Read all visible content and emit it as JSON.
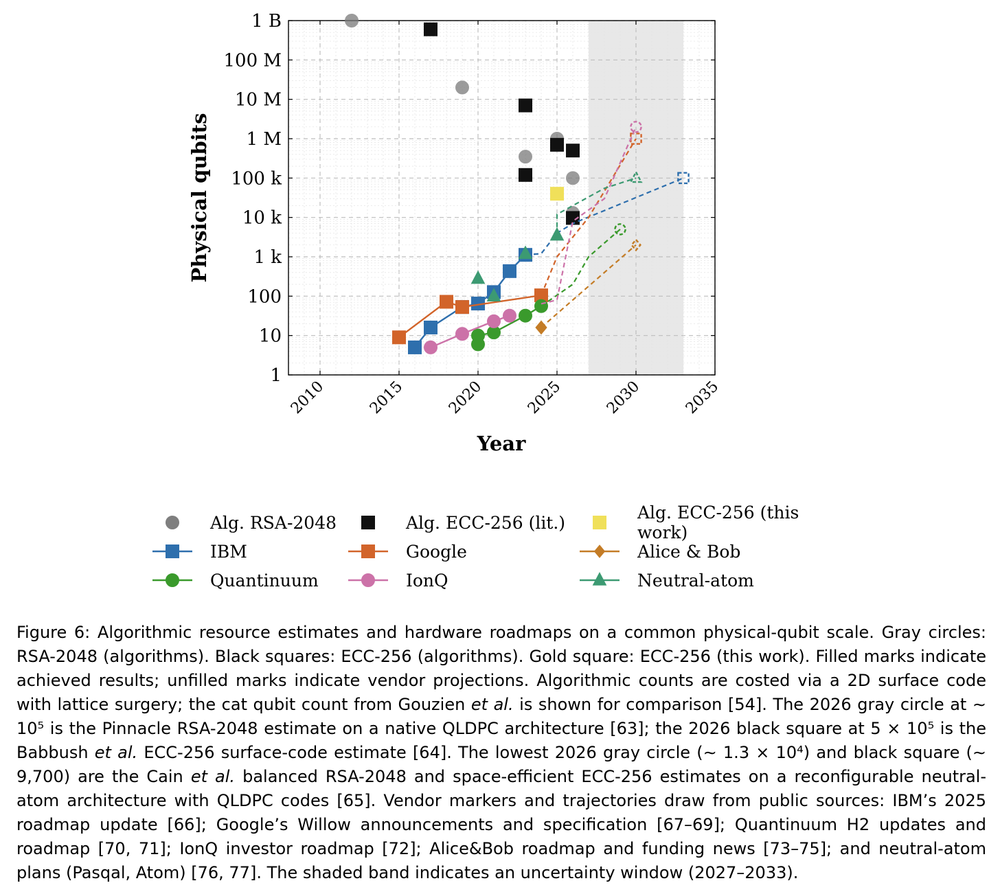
{
  "chart_data": {
    "type": "scatter",
    "xlabel": "Year",
    "ylabel": "Physical qubits",
    "xlim": [
      2008,
      2035
    ],
    "ylim": [
      1,
      1000000000
    ],
    "yscale": "log",
    "xticks": [
      "2010",
      "2015",
      "2020",
      "2025",
      "2030",
      "2035"
    ],
    "yticks": [
      "1",
      "10",
      "100",
      "1 k",
      "10 k",
      "100 k",
      "1 M",
      "10 M",
      "100 M",
      "1 B"
    ],
    "grid": true,
    "shaded_band": {
      "x": [
        2027,
        2033
      ],
      "color": "#e8e8e8"
    },
    "legend_position": "bottom",
    "series": [
      {
        "name": "Alg. RSA-2048",
        "marker": "circle",
        "color": "#7a7a7a",
        "line": false,
        "points": [
          [
            2012,
            1000000000
          ],
          [
            2019,
            20000000
          ],
          [
            2023,
            350000
          ],
          [
            2025,
            1000000
          ],
          [
            2026,
            100000
          ],
          [
            2026,
            13000
          ]
        ]
      },
      {
        "name": "Alg. ECC-256 (lit.)",
        "marker": "square",
        "color": "#111111",
        "line": false,
        "points": [
          [
            2017,
            600000000
          ],
          [
            2023,
            7000000
          ],
          [
            2023,
            120000
          ],
          [
            2025,
            700000
          ],
          [
            2026,
            500000
          ],
          [
            2026,
            9700
          ]
        ]
      },
      {
        "name": "Alg. ECC-256 (this work)",
        "marker": "square",
        "color": "#f0e05a",
        "line": false,
        "points": [
          [
            2025,
            40000
          ]
        ]
      },
      {
        "name": "IBM",
        "marker": "square",
        "color": "#2e6fad",
        "line": true,
        "points": [
          [
            2016,
            5
          ],
          [
            2017,
            16
          ],
          [
            2019,
            53
          ],
          [
            2020,
            65
          ],
          [
            2021,
            127
          ],
          [
            2022,
            433
          ],
          [
            2023,
            1121
          ]
        ],
        "projection": [
          [
            2023,
            1121
          ],
          [
            2024,
            1200
          ],
          [
            2025,
            4000
          ],
          [
            2026,
            7000
          ],
          [
            2033,
            100000
          ]
        ]
      },
      {
        "name": "Google",
        "marker": "square",
        "color": "#d2642a",
        "line": true,
        "points": [
          [
            2015,
            9
          ],
          [
            2018,
            72
          ],
          [
            2019,
            53
          ],
          [
            2024,
            105
          ]
        ],
        "projection": [
          [
            2024,
            105
          ],
          [
            2025,
            1000
          ],
          [
            2027,
            10000
          ],
          [
            2030,
            1000000
          ]
        ]
      },
      {
        "name": "Alice & Bob",
        "marker": "diamond",
        "color": "#c47c26",
        "line": false,
        "points": [
          [
            2024,
            16
          ]
        ],
        "projection": [
          [
            2024,
            16
          ],
          [
            2030,
            2000
          ]
        ]
      },
      {
        "name": "Quantinuum",
        "marker": "circle",
        "color": "#3a9a2c",
        "line": true,
        "points": [
          [
            2020,
            6
          ],
          [
            2020,
            10
          ],
          [
            2021,
            12
          ],
          [
            2023,
            32
          ],
          [
            2024,
            56
          ]
        ],
        "projection": [
          [
            2024,
            56
          ],
          [
            2026,
            200
          ],
          [
            2027,
            1000
          ],
          [
            2029,
            5000
          ]
        ]
      },
      {
        "name": "IonQ",
        "marker": "circle",
        "color": "#cc72a8",
        "line": true,
        "points": [
          [
            2017,
            5
          ],
          [
            2019,
            11
          ],
          [
            2021,
            23
          ],
          [
            2022,
            32
          ]
        ],
        "projection": [
          [
            2024,
            64
          ],
          [
            2025,
            80
          ],
          [
            2026,
            8000
          ],
          [
            2028,
            30000
          ],
          [
            2030,
            2000000
          ]
        ]
      },
      {
        "name": "Neutral-atom",
        "marker": "triangle",
        "color": "#3c9a72",
        "line": false,
        "points": [
          [
            2020,
            280
          ],
          [
            2021,
            100
          ],
          [
            2023,
            1200
          ],
          [
            2025,
            3500
          ]
        ],
        "projection": [
          [
            2025,
            3500
          ],
          [
            2025,
            12000
          ],
          [
            2028,
            55000
          ],
          [
            2030,
            100000
          ]
        ]
      }
    ]
  },
  "caption": {
    "prefix": "Figure 6: Algorithmic resource estimates and hardware roadmaps on a common physical-qubit scale. Gray circles: RSA-2048 (algorithms). Black squares: ECC-256 (algorithms). Gold square: ECC-256 (this work). Filled marks indicate achieved results; unfilled marks indicate vendor projections. Algorithmic counts are costed via a 2D surface code with lattice surgery; the cat qubit count from Gouzien ",
    "etal": "et al.",
    "p2": " is shown for comparison [54]. The 2026 gray circle at ",
    "expr1": "∼ 10⁵",
    "p3": " is the Pinnacle RSA-2048 estimate on a native QLDPC architecture [63]; the 2026 black square at ",
    "expr2": "5 × 10⁵",
    "p4": " is the Babbush ",
    "p5": " ECC-256 surface-code estimate [64]. The lowest 2026 gray circle (",
    "expr3": "∼ 1.3 × 10⁴",
    "p6": ") and black square (",
    "expr4": "∼ 9,700",
    "p7": ") are the Cain ",
    "p8": " balanced RSA-2048 and space-efficient ECC-256 estimates on a reconfigurable neutral-atom architecture with QLDPC codes [65]. Vendor markers and trajectories draw from public sources: IBM’s 2025 roadmap update [66]; Google’s Willow announcements and specification [67–69]; Quantinuum H2 updates and roadmap [70, 71]; IonQ investor roadmap [72]; Alice&Bob roadmap and funding news [73–75]; and neutral-atom plans (Pasqal, Atom) [76, 77]. The shaded band indicates an uncertainty window (2027–2033)."
  }
}
